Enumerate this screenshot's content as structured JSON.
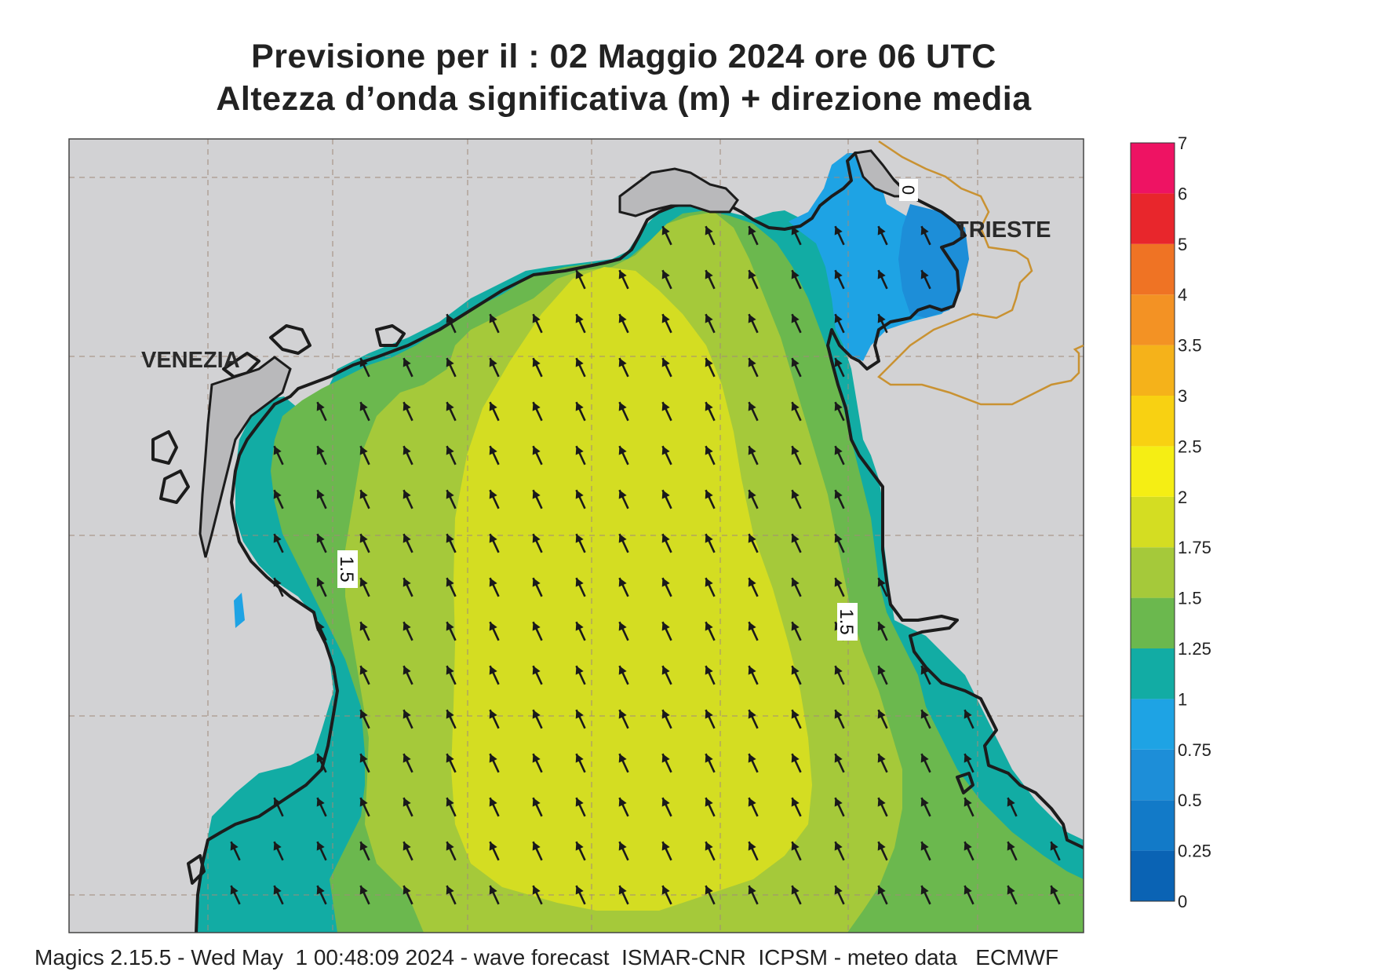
{
  "title": {
    "line1": "Previsione per il  :  02   Maggio  2024   ore 06 UTC",
    "line2": "Altezza d’onda significativa (m) + direzione media"
  },
  "map": {
    "cities": [
      {
        "name": "VENEZIA"
      },
      {
        "name": "TRIESTE"
      }
    ],
    "contour_labels": [
      "1.5",
      "1.5",
      "0"
    ],
    "arrow_direction_deg": 335
  },
  "legend": {
    "levels": [
      "0",
      "0.25",
      "0.5",
      "0.75",
      "1",
      "1.25",
      "1.5",
      "1.75",
      "2",
      "2.5",
      "3",
      "3.5",
      "4",
      "5",
      "6",
      "7"
    ],
    "colors": [
      "#0a63b4",
      "#127ac8",
      "#1d8ed8",
      "#1ea3e4",
      "#12aca4",
      "#6bb84e",
      "#a5c93a",
      "#d4dd22",
      "#f5ee14",
      "#f8d112",
      "#f5b21a",
      "#f39224",
      "#ef7324",
      "#e8262c",
      "#ee1363"
    ]
  },
  "colors": {
    "land": "#d2d2d4",
    "coast": "#1c1c1c",
    "border": "#c99232"
  },
  "footer": "Magics 2.15.5 - Wed May  1 00:48:09 2024 - wave forecast  ISMAR-CNR  ICPSM - meteo data   ECMWF"
}
